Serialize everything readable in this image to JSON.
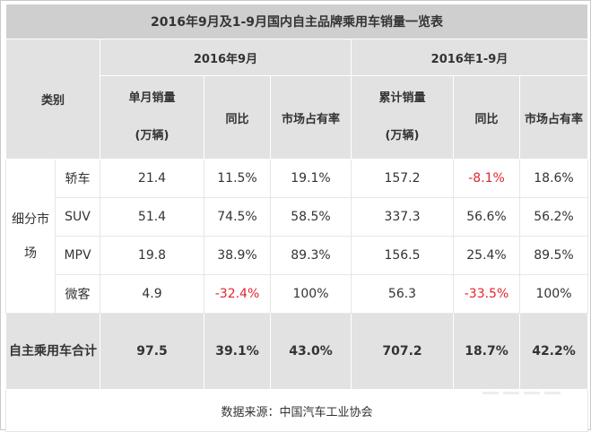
{
  "title": "2016年9月及1-9月国内自主品牌乘用车销量一览表",
  "header": {
    "category": "类别",
    "period_sep": "2016年9月",
    "period_ytd": "2016年1-9月",
    "monthly_sales": "单月销量",
    "unit": "(万辆)",
    "yoy": "同比",
    "market_share": "市场占有率",
    "cumulative_sales": "累计销量"
  },
  "segment_label": "细分市场",
  "rows": [
    {
      "type": "轿车",
      "sep_sales": "21.4",
      "sep_yoy": "11.5%",
      "sep_share": "19.1%",
      "ytd_sales": "157.2",
      "ytd_yoy": "-8.1%",
      "ytd_share": "18.6%"
    },
    {
      "type": "SUV",
      "sep_sales": "51.4",
      "sep_yoy": "74.5%",
      "sep_share": "58.5%",
      "ytd_sales": "337.3",
      "ytd_yoy": "56.6%",
      "ytd_share": "56.2%"
    },
    {
      "type": "MPV",
      "sep_sales": "19.8",
      "sep_yoy": "38.9%",
      "sep_share": "89.3%",
      "ytd_sales": "156.5",
      "ytd_yoy": "25.4%",
      "ytd_share": "89.5%"
    },
    {
      "type": "微客",
      "sep_sales": "4.9",
      "sep_yoy": "-32.4%",
      "sep_share": "100%",
      "ytd_sales": "56.3",
      "ytd_yoy": "-33.5%",
      "ytd_share": "100%"
    }
  ],
  "total": {
    "label": "自主乘用车合计",
    "sep_sales": "97.5",
    "sep_yoy": "39.1%",
    "sep_share": "43.0%",
    "ytd_sales": "707.2",
    "ytd_yoy": "18.7%",
    "ytd_share": "42.2%"
  },
  "source": "数据来源：中国汽车工业协会",
  "colors": {
    "header_bg": "#e2e2e2",
    "title_bg": "#cfcfcf",
    "negative": "#e0262f"
  }
}
